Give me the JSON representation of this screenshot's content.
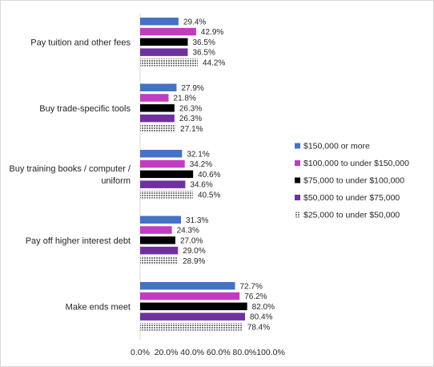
{
  "chart_data": {
    "type": "bar",
    "orientation": "horizontal",
    "categories": [
      [
        "Pay tuition and other fees"
      ],
      [
        "Buy trade-specific tools"
      ],
      [
        "Buy training books / computer /",
        "uniform"
      ],
      [
        "Pay off higher interest debt"
      ],
      [
        "Make ends meet"
      ]
    ],
    "series": [
      {
        "name": "$150,000 or more",
        "color": "#4472c4",
        "pattern": "solid",
        "values": [
          29.4,
          27.9,
          32.1,
          31.3,
          72.7
        ]
      },
      {
        "name": "$100,000 to under $150,000",
        "color": "#c23cc3",
        "pattern": "solid",
        "values": [
          42.9,
          21.8,
          34.2,
          24.3,
          76.2
        ]
      },
      {
        "name": "$75,000 to under $100,000",
        "color": "#000000",
        "pattern": "solid",
        "values": [
          36.5,
          26.3,
          40.6,
          27.0,
          82.0
        ]
      },
      {
        "name": "$50,000 to under $75,000",
        "color": "#7030a0",
        "pattern": "solid",
        "values": [
          36.5,
          26.3,
          34.6,
          29.0,
          80.4
        ]
      },
      {
        "name": "$25,000 to under $50,000",
        "color": "#7f7f7f",
        "pattern": "dotted",
        "values": [
          44.2,
          27.1,
          40.5,
          28.9,
          78.4
        ]
      }
    ],
    "xlim": [
      0,
      100
    ],
    "xticks": [
      "0.0%",
      "20.0%",
      "40.0%",
      "60.0%",
      "80.0%",
      "100.0%"
    ],
    "value_suffix": "%",
    "legend_position": "right",
    "grid": false,
    "title": "",
    "xlabel": "",
    "ylabel": ""
  }
}
